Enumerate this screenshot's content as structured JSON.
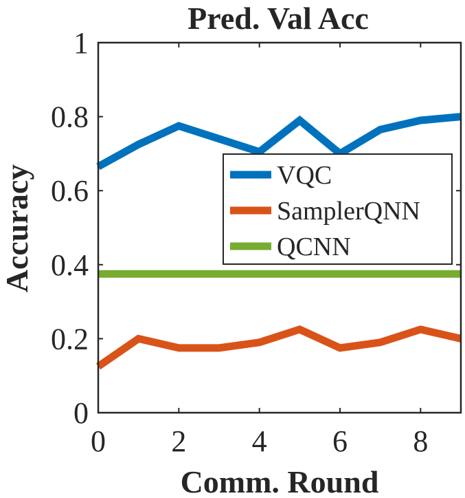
{
  "chart_data": {
    "type": "line",
    "title": "Pred. Val Acc",
    "xlabel": "Comm. Round",
    "ylabel": "Accuracy",
    "xlim": [
      0,
      9
    ],
    "ylim": [
      0,
      1
    ],
    "x": [
      0,
      1,
      2,
      3,
      4,
      5,
      6,
      7,
      8,
      9
    ],
    "xticks": [
      0,
      2,
      4,
      6,
      8
    ],
    "xtick_labels": [
      "0",
      "2",
      "4",
      "6",
      "8"
    ],
    "yticks": [
      0,
      0.2,
      0.4,
      0.6,
      0.8,
      1
    ],
    "ytick_labels": [
      "0",
      "0.2",
      "0.4",
      "0.6",
      "0.8",
      "1"
    ],
    "legend_position": "middle-right",
    "series": [
      {
        "name": "VQC",
        "color": "#0072BD",
        "values": [
          0.665,
          0.725,
          0.775,
          0.74,
          0.705,
          0.79,
          0.7,
          0.765,
          0.79,
          0.8
        ]
      },
      {
        "name": "SamplerQNN",
        "color": "#D95319",
        "values": [
          0.125,
          0.2,
          0.175,
          0.175,
          0.19,
          0.225,
          0.175,
          0.19,
          0.225,
          0.2
        ]
      },
      {
        "name": "QCNN",
        "color": "#77AC30",
        "values": [
          0.375,
          0.375,
          0.375,
          0.375,
          0.375,
          0.375,
          0.375,
          0.375,
          0.375,
          0.375
        ]
      }
    ]
  }
}
